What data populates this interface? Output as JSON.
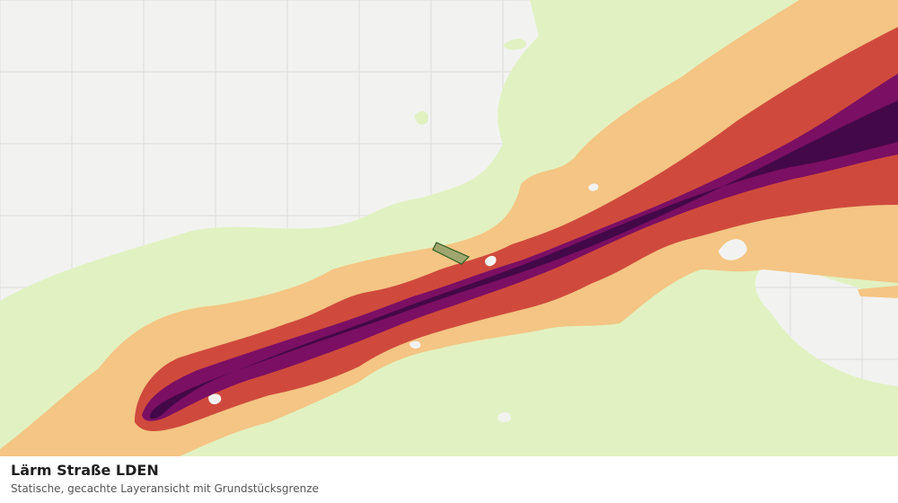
{
  "layer": {
    "title": "Lärm Straße LDEN",
    "subtitle": "Statische, gecachte Layeransicht mit Grundstücksgrenze"
  },
  "colors": {
    "background": "#f2f3f1",
    "grid": "#dcdedb",
    "band_lightest": "#e2f1c1",
    "band_light": "#f4c584",
    "band_mid": "#cf4a3d",
    "band_dark": "#7b0f63",
    "band_darkest": "#430848",
    "parcel_fill": "#9fa66e",
    "parcel_stroke": "#2b5a22"
  },
  "icons": {
    "parcel": "parcel-boundary-shape"
  }
}
